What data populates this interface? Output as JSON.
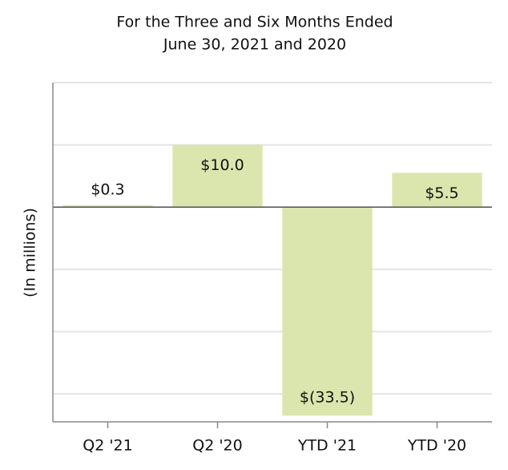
{
  "chart_data": {
    "type": "bar",
    "title": [
      "For the Three and Six Months Ended",
      "June 30, 2021 and 2020"
    ],
    "y_label": "(In millions)",
    "categories": [
      "Q2 '21",
      "Q2 '20",
      "YTD '21",
      "YTD '20"
    ],
    "values": [
      0.3,
      10.0,
      -33.5,
      5.5
    ],
    "value_labels": [
      "$0.3",
      "$10.0",
      "$(33.5)",
      "$5.5"
    ],
    "color": "#dbe5ae",
    "ylim": [
      -34.5,
      20
    ],
    "yticks": [
      -30,
      -20,
      -10,
      0,
      10,
      20
    ],
    "grid": true
  }
}
